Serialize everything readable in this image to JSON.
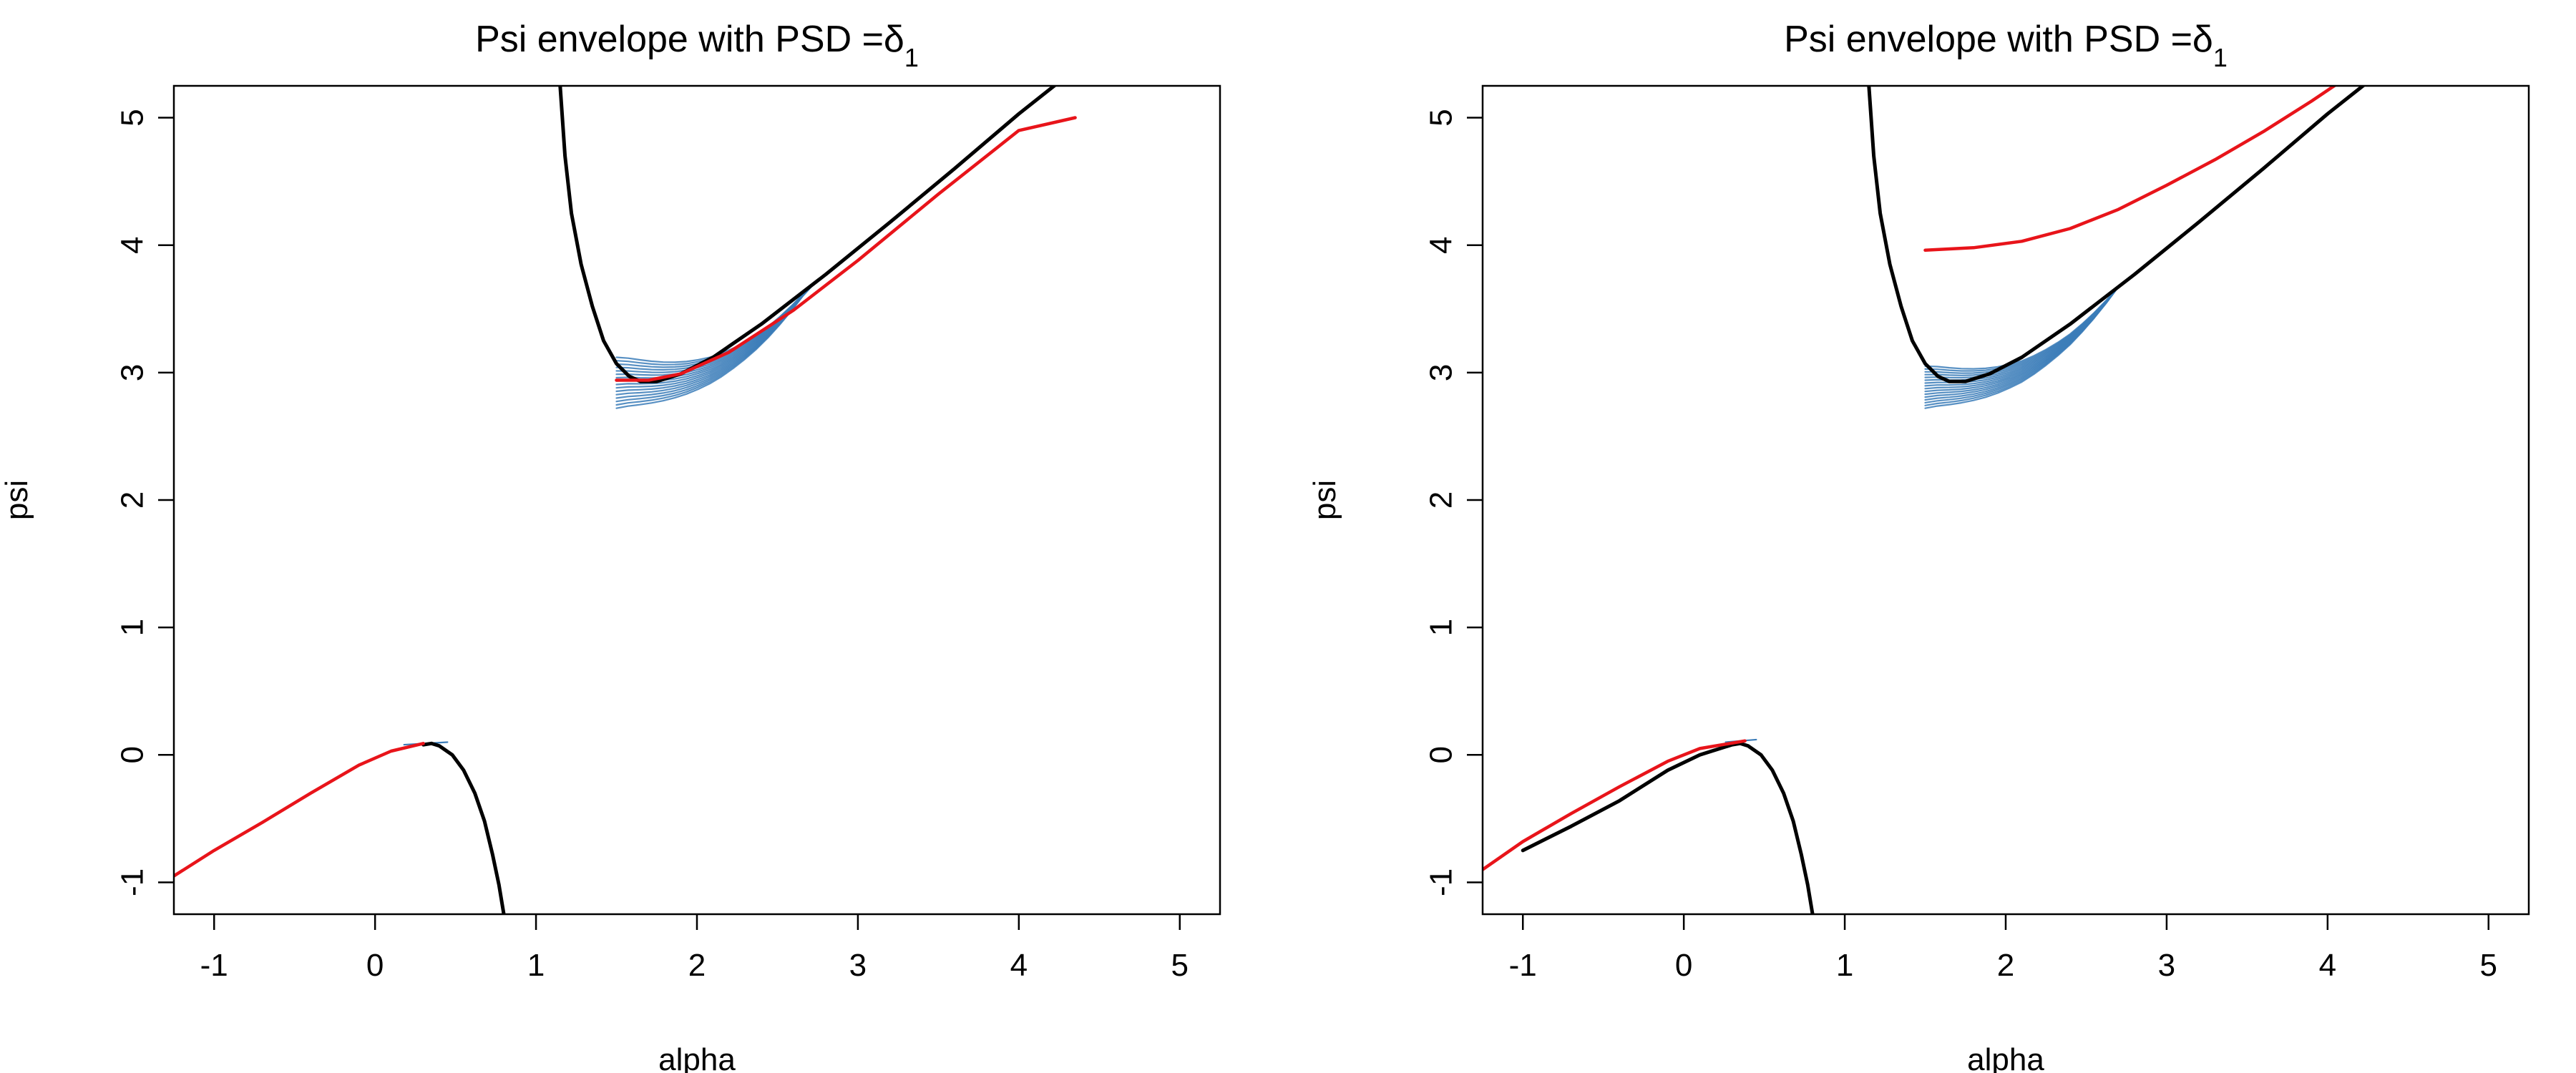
{
  "chart_data": [
    {
      "type": "line",
      "title": "Psi envelope with PSD =δ",
      "title_subscript": "1",
      "xlabel": "alpha",
      "ylabel": "psi",
      "xlim": [
        -1.25,
        5.25
      ],
      "ylim": [
        -1.25,
        5.25
      ],
      "xticks": [
        "-1",
        "0",
        "1",
        "2",
        "3",
        "4",
        "5"
      ],
      "yticks": [
        "-1",
        "0",
        "1",
        "2",
        "3",
        "4",
        "5"
      ],
      "grid": false,
      "legend": "none",
      "series": [
        {
          "role": "envelope-upper",
          "color": "#000000",
          "x": [
            1.15,
            1.18,
            1.22,
            1.28,
            1.35,
            1.42,
            1.5,
            1.58,
            1.65,
            1.75,
            1.9,
            2.1,
            2.4,
            2.8,
            3.2,
            3.6,
            4.0,
            4.3,
            4.6
          ],
          "y": [
            5.25,
            4.7,
            4.25,
            3.85,
            3.52,
            3.25,
            3.07,
            2.97,
            2.93,
            2.93,
            2.99,
            3.12,
            3.38,
            3.77,
            4.18,
            4.6,
            5.03,
            5.33,
            5.65
          ]
        },
        {
          "role": "envelope-lower",
          "color": "#000000",
          "x": [
            0.3,
            0.35,
            0.4,
            0.48,
            0.55,
            0.62,
            0.68,
            0.73,
            0.77,
            0.8
          ],
          "y": [
            0.08,
            0.09,
            0.07,
            0.0,
            -0.12,
            -0.3,
            -0.52,
            -0.78,
            -1.02,
            -1.25
          ]
        },
        {
          "role": "fit-upper",
          "color": "#e8141a",
          "x": [
            1.5,
            1.7,
            1.9,
            2.2,
            2.6,
            3.0,
            3.5,
            4.0,
            4.35
          ],
          "y": [
            2.94,
            2.94,
            2.99,
            3.16,
            3.49,
            3.88,
            4.4,
            4.9,
            5.0
          ]
        },
        {
          "role": "fit-lower",
          "color": "#e8141a",
          "x": [
            -1.25,
            -1.0,
            -0.7,
            -0.4,
            -0.1,
            0.1,
            0.3
          ],
          "y": [
            -0.95,
            -0.75,
            -0.53,
            -0.3,
            -0.08,
            0.03,
            0.09
          ]
        }
      ],
      "band": {
        "color": "#3b7cb8",
        "count": 16,
        "x_start": 1.5,
        "x_end": 4.4,
        "y_start_min": 2.72,
        "y_start_max": 3.12,
        "lower_end": {
          "x": 0.45,
          "y": 0.1
        }
      }
    },
    {
      "type": "line",
      "title": "Psi envelope with PSD =δ",
      "title_subscript": "1",
      "xlabel": "alpha",
      "ylabel": "psi",
      "xlim": [
        -1.25,
        5.25
      ],
      "ylim": [
        -1.25,
        5.25
      ],
      "xticks": [
        "-1",
        "0",
        "1",
        "2",
        "3",
        "4",
        "5"
      ],
      "yticks": [
        "-1",
        "0",
        "1",
        "2",
        "3",
        "4",
        "5"
      ],
      "grid": false,
      "legend": "none",
      "series": [
        {
          "role": "envelope-upper",
          "color": "#000000",
          "x": [
            1.15,
            1.18,
            1.22,
            1.28,
            1.35,
            1.42,
            1.5,
            1.58,
            1.65,
            1.75,
            1.9,
            2.1,
            2.4,
            2.8,
            3.2,
            3.6,
            4.0,
            4.3,
            4.6
          ],
          "y": [
            5.25,
            4.7,
            4.25,
            3.85,
            3.52,
            3.25,
            3.07,
            2.97,
            2.93,
            2.93,
            2.99,
            3.12,
            3.38,
            3.77,
            4.18,
            4.6,
            5.03,
            5.33,
            5.65
          ]
        },
        {
          "role": "envelope-lower",
          "color": "#000000",
          "x": [
            -1.0,
            -0.7,
            -0.4,
            -0.1,
            0.1,
            0.3,
            0.35,
            0.4,
            0.48,
            0.55,
            0.62,
            0.68,
            0.73,
            0.77,
            0.8
          ],
          "y": [
            -0.75,
            -0.56,
            -0.36,
            -0.12,
            0.0,
            0.08,
            0.09,
            0.07,
            0.0,
            -0.12,
            -0.3,
            -0.52,
            -0.78,
            -1.02,
            -1.25
          ]
        },
        {
          "role": "fit-upper",
          "color": "#e8141a",
          "x": [
            1.5,
            1.8,
            2.1,
            2.4,
            2.7,
            3.0,
            3.3,
            3.6,
            3.9,
            4.1
          ],
          "y": [
            3.96,
            3.98,
            4.03,
            4.13,
            4.28,
            4.47,
            4.67,
            4.89,
            5.13,
            5.3
          ]
        },
        {
          "role": "fit-lower",
          "color": "#e8141a",
          "x": [
            -1.25,
            -1.0,
            -0.7,
            -0.4,
            -0.1,
            0.1,
            0.38
          ],
          "y": [
            -0.9,
            -0.68,
            -0.46,
            -0.25,
            -0.05,
            0.05,
            0.11
          ]
        }
      ],
      "band": {
        "color": "#3b7cb8",
        "count": 16,
        "x_start": 1.5,
        "x_end": 4.5,
        "y_start_min": 2.72,
        "y_start_max": 3.05,
        "lower_end": {
          "x": 0.45,
          "y": 0.12
        }
      }
    }
  ]
}
